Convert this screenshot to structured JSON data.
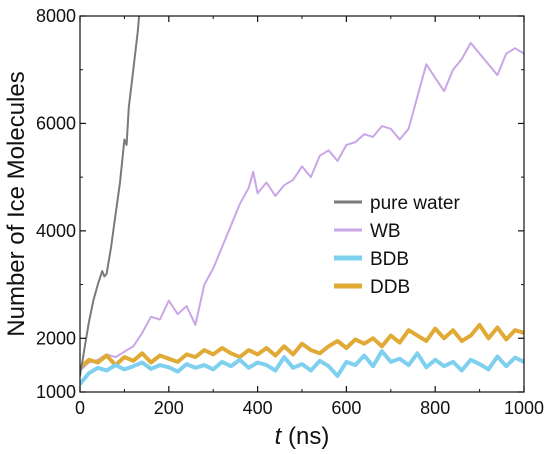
{
  "chart_data": {
    "type": "line",
    "xlabel_italic": "t",
    "xlabel_rest": " (ns)",
    "ylabel": "Number of Ice Molecules",
    "xlim": [
      0,
      1000
    ],
    "ylim": [
      1000,
      8000
    ],
    "x_ticks": [
      "0",
      "200",
      "400",
      "600",
      "800",
      "1000"
    ],
    "y_ticks": [
      "1000",
      "2000",
      "4000",
      "6000",
      "8000"
    ],
    "legend_position": "center-right",
    "grid": false,
    "series": [
      {
        "name": "pure water",
        "color": "#7a7a7a",
        "width": 2,
        "x": [
          0,
          10,
          20,
          30,
          40,
          50,
          55,
          60,
          70,
          80,
          90,
          100,
          105,
          110,
          120,
          130,
          133
        ],
        "y": [
          1300,
          1800,
          2300,
          2700,
          3000,
          3250,
          3150,
          3200,
          3700,
          4300,
          4900,
          5700,
          5600,
          6300,
          7000,
          7700,
          8000
        ]
      },
      {
        "name": "WB",
        "color": "#c9a6e6",
        "width": 2,
        "x": [
          0,
          20,
          40,
          60,
          80,
          100,
          120,
          140,
          160,
          180,
          200,
          220,
          240,
          260,
          280,
          300,
          320,
          340,
          360,
          380,
          390,
          400,
          420,
          440,
          460,
          480,
          500,
          520,
          540,
          560,
          580,
          600,
          620,
          640,
          660,
          680,
          700,
          720,
          740,
          760,
          780,
          800,
          820,
          840,
          860,
          880,
          900,
          920,
          940,
          960,
          980,
          1000
        ],
        "y": [
          1400,
          1550,
          1600,
          1700,
          1650,
          1750,
          1850,
          2100,
          2400,
          2350,
          2700,
          2450,
          2600,
          2250,
          3000,
          3300,
          3700,
          4100,
          4500,
          4800,
          5100,
          4700,
          4900,
          4650,
          4850,
          4950,
          5200,
          5000,
          5400,
          5500,
          5300,
          5600,
          5650,
          5800,
          5750,
          5950,
          5900,
          5700,
          5900,
          6500,
          7100,
          6850,
          6600,
          7000,
          7200,
          7500,
          7300,
          7100,
          6900,
          7300,
          7400,
          7300
        ]
      },
      {
        "name": "BDB",
        "color": "#7fd0ee",
        "width": 4,
        "x": [
          0,
          20,
          40,
          60,
          80,
          100,
          120,
          140,
          160,
          180,
          200,
          220,
          240,
          260,
          280,
          300,
          320,
          340,
          360,
          380,
          400,
          420,
          440,
          460,
          480,
          500,
          520,
          540,
          560,
          580,
          600,
          620,
          640,
          660,
          680,
          700,
          720,
          740,
          760,
          780,
          800,
          820,
          840,
          860,
          880,
          900,
          920,
          940,
          960,
          980,
          1000
        ],
        "y": [
          1150,
          1350,
          1450,
          1400,
          1500,
          1420,
          1480,
          1550,
          1430,
          1500,
          1460,
          1380,
          1520,
          1450,
          1500,
          1420,
          1560,
          1480,
          1600,
          1450,
          1550,
          1500,
          1400,
          1650,
          1450,
          1520,
          1400,
          1580,
          1480,
          1300,
          1560,
          1500,
          1680,
          1480,
          1760,
          1560,
          1620,
          1500,
          1720,
          1460,
          1600,
          1480,
          1560,
          1400,
          1600,
          1520,
          1420,
          1660,
          1480,
          1640,
          1560
        ]
      },
      {
        "name": "DDB",
        "color": "#e0aa35",
        "width": 4,
        "x": [
          0,
          20,
          40,
          60,
          80,
          100,
          120,
          140,
          160,
          180,
          200,
          220,
          240,
          260,
          280,
          300,
          320,
          340,
          360,
          380,
          400,
          420,
          440,
          460,
          480,
          500,
          520,
          540,
          560,
          580,
          600,
          620,
          640,
          660,
          680,
          700,
          720,
          740,
          760,
          780,
          800,
          820,
          840,
          860,
          880,
          900,
          920,
          940,
          960,
          980,
          1000
        ],
        "y": [
          1450,
          1600,
          1550,
          1680,
          1500,
          1650,
          1580,
          1720,
          1550,
          1680,
          1620,
          1560,
          1700,
          1650,
          1780,
          1700,
          1820,
          1720,
          1650,
          1780,
          1700,
          1820,
          1680,
          1850,
          1700,
          1900,
          1780,
          1720,
          1850,
          1950,
          1820,
          1980,
          1900,
          2000,
          1850,
          2050,
          1920,
          2150,
          2050,
          1950,
          2180,
          2000,
          2150,
          1950,
          2050,
          2250,
          2000,
          2200,
          1980,
          2150,
          2100
        ]
      }
    ]
  }
}
